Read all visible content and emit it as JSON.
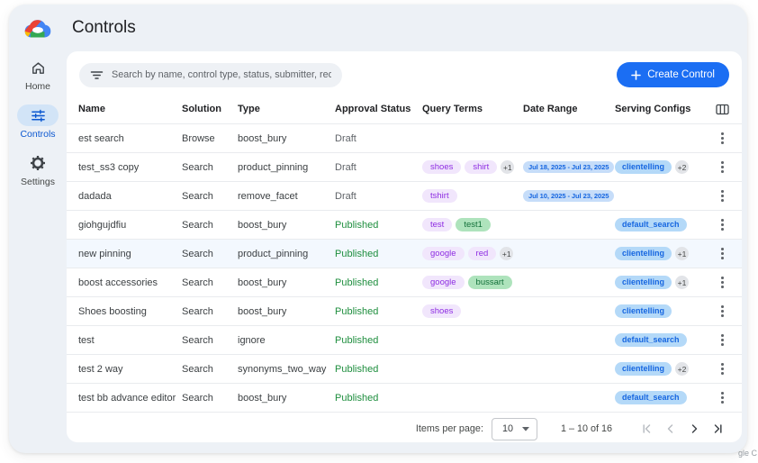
{
  "header": {
    "title": "Controls"
  },
  "watermark": "gle C",
  "sidebar": {
    "items": [
      {
        "label": "Home",
        "icon": "home-icon",
        "active": false
      },
      {
        "label": "Controls",
        "icon": "tune-icon",
        "active": true
      },
      {
        "label": "Settings",
        "icon": "gear-icon",
        "active": false
      }
    ]
  },
  "toolbar": {
    "search_placeholder": "Search by name, control type, status, submitter, requested on",
    "create_label": "Create Control"
  },
  "table": {
    "columns": [
      "Name",
      "Solution",
      "Type",
      "Approval Status",
      "Query Terms",
      "Date Range",
      "Serving Configs"
    ],
    "rows": [
      {
        "name": "est search",
        "solution": "Browse",
        "type": "boost_bury",
        "status": "Draft",
        "query_terms": [],
        "query_more": "",
        "date_range": "",
        "serving_configs": [],
        "serving_more": "",
        "highlighted": false
      },
      {
        "name": "test_ss3 copy",
        "solution": "Search",
        "type": "product_pinning",
        "status": "Draft",
        "query_terms": [
          {
            "text": "shoes",
            "color": "purple"
          },
          {
            "text": "shirt",
            "color": "purple"
          }
        ],
        "query_more": "+1",
        "date_range": "Jul 18, 2025 - Jul 23, 2025",
        "serving_configs": [
          "clientelling"
        ],
        "serving_more": "+2",
        "highlighted": false
      },
      {
        "name": "dadada",
        "solution": "Search",
        "type": "remove_facet",
        "status": "Draft",
        "query_terms": [
          {
            "text": "tshirt",
            "color": "purple"
          }
        ],
        "query_more": "",
        "date_range": "Jul 10, 2025 - Jul 23, 2025",
        "serving_configs": [],
        "serving_more": "",
        "highlighted": false
      },
      {
        "name": "giohgujdfiu",
        "solution": "Search",
        "type": "boost_bury",
        "status": "Published",
        "query_terms": [
          {
            "text": "test",
            "color": "purple"
          },
          {
            "text": "test1",
            "color": "green"
          }
        ],
        "query_more": "",
        "date_range": "",
        "serving_configs": [
          "default_search"
        ],
        "serving_more": "",
        "highlighted": false
      },
      {
        "name": "new pinning",
        "solution": "Search",
        "type": "product_pinning",
        "status": "Published",
        "query_terms": [
          {
            "text": "google",
            "color": "purple"
          },
          {
            "text": "red",
            "color": "purple"
          }
        ],
        "query_more": "+1",
        "date_range": "",
        "serving_configs": [
          "clientelling"
        ],
        "serving_more": "+1",
        "highlighted": true
      },
      {
        "name": "boost accessories",
        "solution": "Search",
        "type": "boost_bury",
        "status": "Published",
        "query_terms": [
          {
            "text": "google",
            "color": "purple"
          },
          {
            "text": "bussart",
            "color": "green"
          }
        ],
        "query_more": "",
        "date_range": "",
        "serving_configs": [
          "clientelling"
        ],
        "serving_more": "+1",
        "highlighted": false
      },
      {
        "name": "Shoes boosting",
        "solution": "Search",
        "type": "boost_bury",
        "status": "Published",
        "query_terms": [
          {
            "text": "shoes",
            "color": "purple"
          }
        ],
        "query_more": "",
        "date_range": "",
        "serving_configs": [
          "clientelling"
        ],
        "serving_more": "",
        "highlighted": false
      },
      {
        "name": "test",
        "solution": "Search",
        "type": "ignore",
        "status": "Published",
        "query_terms": [],
        "query_more": "",
        "date_range": "",
        "serving_configs": [
          "default_search"
        ],
        "serving_more": "",
        "highlighted": false
      },
      {
        "name": "test 2 way",
        "solution": "Search",
        "type": "synonyms_two_way",
        "status": "Published",
        "query_terms": [],
        "query_more": "",
        "date_range": "",
        "serving_configs": [
          "clientelling"
        ],
        "serving_more": "+2",
        "highlighted": false
      },
      {
        "name": "test bb advance editor",
        "solution": "Search",
        "type": "boost_bury",
        "status": "Published",
        "query_terms": [],
        "query_more": "",
        "date_range": "",
        "serving_configs": [
          "default_search"
        ],
        "serving_more": "",
        "highlighted": false
      }
    ]
  },
  "pagination": {
    "items_per_page_label": "Items per page:",
    "page_size": "10",
    "range_label": "1 – 10 of 16"
  },
  "colors": {
    "accent_blue": "#1b6ef3",
    "active_nav_blue": "#0b57d0",
    "published_green": "#1e8e3e",
    "draft_gray": "#5f6368",
    "query_pill_purple_bg": "#f1e6fc",
    "query_pill_purple_text": "#8e2de2",
    "query_pill_green_bg": "#aee3bc",
    "date_pill_bg": "#c6ddf9",
    "config_pill_bg": "#b4d9f8",
    "highlight_row_bg": "#f3f8fe"
  }
}
